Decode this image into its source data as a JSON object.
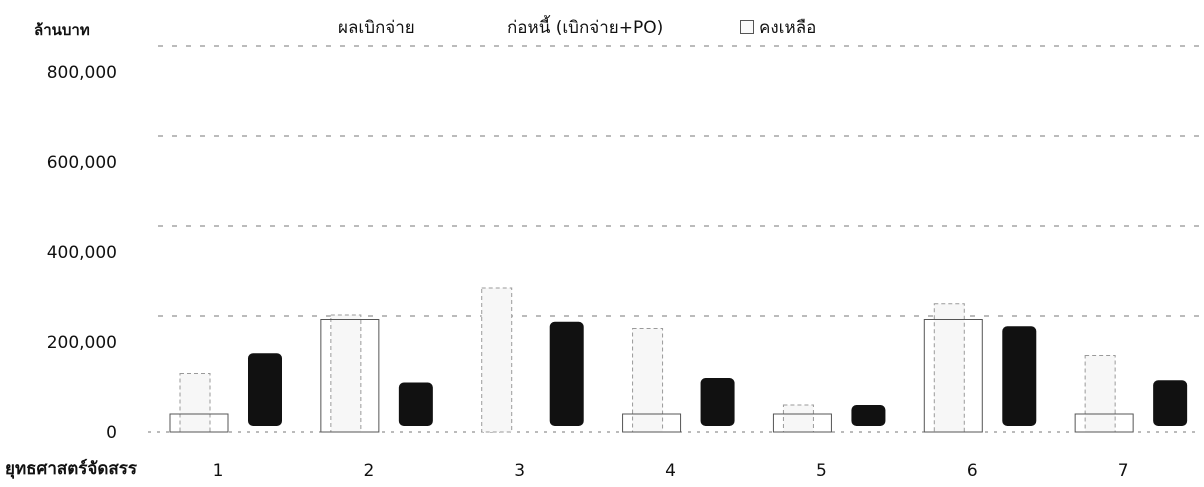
{
  "chart_data": {
    "type": "bar",
    "title": "",
    "ylabel": "ล้านบาท",
    "xlabel": "ยุทธศาสตร์จัดสรร",
    "categories": [
      "1",
      "2",
      "3",
      "4",
      "5",
      "6",
      "7"
    ],
    "ylim": [
      0,
      800000
    ],
    "yticks": [
      0,
      200000,
      400000,
      600000,
      800000
    ],
    "ytick_labels": [
      "0",
      "200,000",
      "400,000",
      "600,000",
      "800,000"
    ],
    "legend": [
      "ผลเบิกจ่าย",
      "ก่อหนี้ (เบิกจ่าย+PO)",
      "คงเหลือ"
    ],
    "legend_position": "top",
    "grid": true,
    "series": [
      {
        "name": "ผลเบิกจ่าย",
        "values": [
          40000,
          250000,
          0,
          40000,
          40000,
          250000,
          40000
        ]
      },
      {
        "name": "ก่อหนี้ (เบิกจ่าย+PO)",
        "values": [
          130000,
          260000,
          320000,
          230000,
          60000,
          285000,
          170000
        ]
      },
      {
        "name": "คงเหลือ",
        "values": [
          175000,
          110000,
          245000,
          120000,
          60000,
          235000,
          115000
        ]
      }
    ],
    "colors": {
      "remaining": "#111111",
      "outline": "#9a9a9a",
      "grid": "#777777"
    }
  }
}
